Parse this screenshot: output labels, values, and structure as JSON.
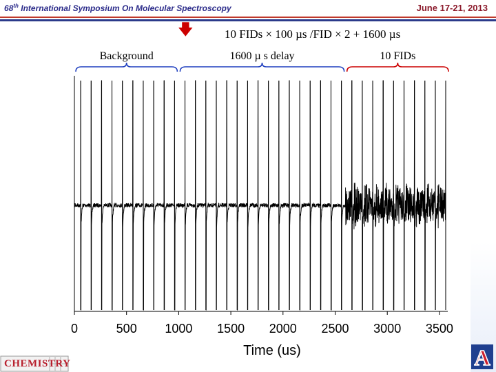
{
  "header": {
    "conference_number": "68",
    "conference_suffix": "th",
    "conference_name": "International Symposium On Molecular Spectroscopy",
    "dates": "June 17-21, 2013"
  },
  "formula": "10 FIDs × 100 µs /FID × 2 + 1600 µs",
  "logos": {
    "chemistry_text": "CHEMISTRY",
    "university_mark": "A"
  },
  "colors": {
    "header_text": "#2b2b8a",
    "dates_text": "#8b1a2b",
    "rule_red": "#c0392b",
    "rule_blue": "#2b3a8a",
    "arrow": "#cc0000",
    "brace_background": "#1f3fbf",
    "brace_delay": "#1f3fbf",
    "brace_fids": "#cc0000",
    "trace": "#000000"
  },
  "chart_data": {
    "type": "line",
    "xlabel": "Time (us)",
    "ylabel": "",
    "xlim": [
      0,
      3600
    ],
    "xticks": [
      0,
      500,
      1000,
      1500,
      2000,
      2500,
      3000,
      3500
    ],
    "grid": false,
    "legend": "none",
    "segments": [
      {
        "label": "Background",
        "x_range": [
          0,
          1000
        ],
        "brace_color": "blue"
      },
      {
        "label": "1600 µ s delay",
        "x_range": [
          1000,
          2600
        ],
        "brace_color": "blue"
      },
      {
        "label": "10 FIDs",
        "x_range": [
          2600,
          3600
        ],
        "brace_color": "red"
      }
    ],
    "pulse_times": [
      0,
      100,
      200,
      300,
      400,
      500,
      600,
      700,
      800,
      900,
      1000,
      1100,
      1200,
      1300,
      1400,
      1500,
      1600,
      1700,
      1800,
      1900,
      2000,
      2100,
      2200,
      2300,
      2400,
      2500,
      2600,
      2700,
      2800,
      2900,
      3000,
      3100,
      3200,
      3300,
      3400,
      3500
    ],
    "fid_region_start": 2600
  }
}
